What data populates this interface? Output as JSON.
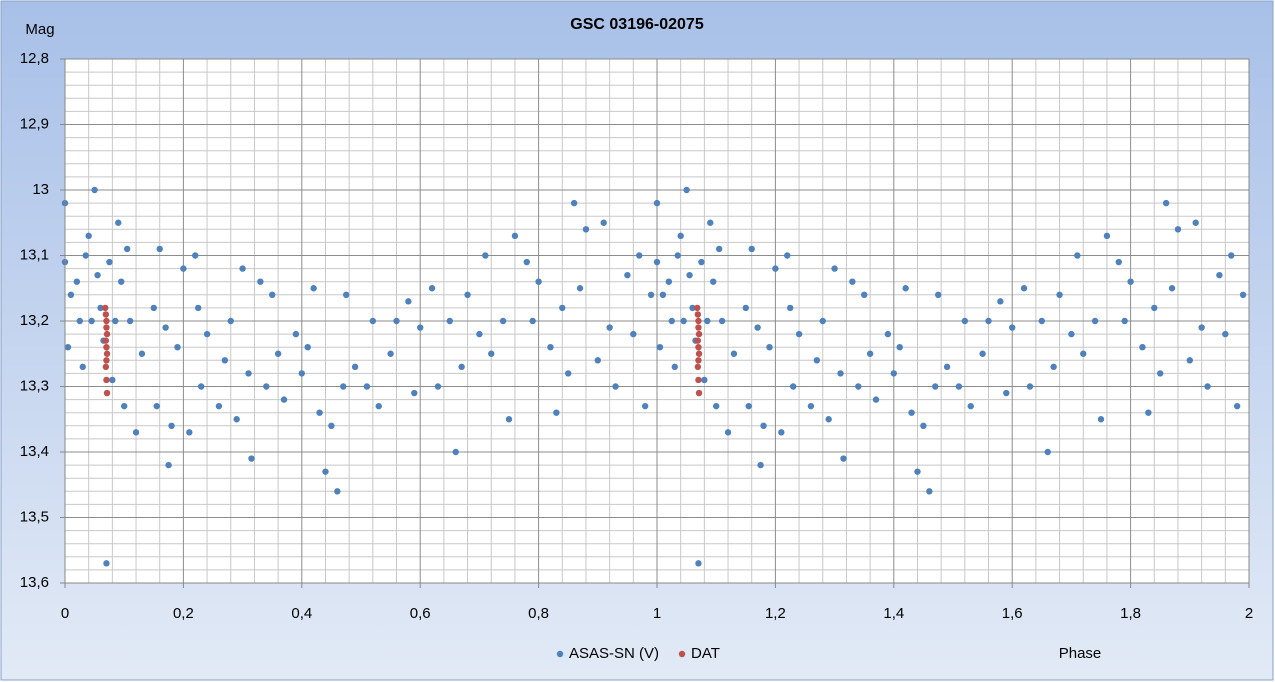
{
  "chart_data": {
    "type": "scatter",
    "title": "GSC 03196-02075",
    "y_label": "Mag",
    "x_label": "Phase",
    "xlim": [
      0,
      2
    ],
    "ylim": [
      13.6,
      12.8
    ],
    "xticks": [
      0,
      {
        "value": 0.2,
        "label": "0,2"
      },
      {
        "value": 0.4,
        "label": "0,4"
      },
      {
        "value": 0.6,
        "label": "0,6"
      },
      {
        "value": 0.8,
        "label": "0,8"
      },
      1,
      {
        "value": 1.2,
        "label": "1,2"
      },
      {
        "value": 1.4,
        "label": "1,4"
      },
      {
        "value": 1.6,
        "label": "1,6"
      },
      {
        "value": 1.8,
        "label": "1,8"
      },
      2
    ],
    "yticks": [
      {
        "value": 12.8,
        "label": "12,8"
      },
      {
        "value": 12.9,
        "label": "12,9"
      },
      13,
      {
        "value": 13.1,
        "label": "13,1"
      },
      {
        "value": 13.2,
        "label": "13,2"
      },
      {
        "value": 13.3,
        "label": "13,3"
      },
      {
        "value": 13.4,
        "label": "13,4"
      },
      {
        "value": 13.5,
        "label": "13,5"
      },
      {
        "value": 13.6,
        "label": "13,6"
      }
    ],
    "grid": true,
    "legend": "bottom",
    "series": [
      {
        "name": "ASAS-SN (V)",
        "color": "#4f81bd",
        "x": [
          0,
          0,
          0.005,
          0.01,
          0.02,
          0.025,
          0.03,
          0.035,
          0.04,
          0.045,
          0.05,
          0.055,
          0.06,
          0.065,
          0.07,
          0.075,
          0.08,
          0.085,
          0.09,
          0.095,
          0.1,
          0.105,
          0.11,
          0.12,
          0.13,
          0.15,
          0.155,
          0.16,
          0.17,
          0.175,
          0.18,
          0.19,
          0.2,
          0.21,
          0.22,
          0.225,
          0.23,
          0.24,
          0.26,
          0.27,
          0.28,
          0.29,
          0.3,
          0.31,
          0.315,
          0.33,
          0.34,
          0.35,
          0.36,
          0.37,
          0.39,
          0.4,
          0.41,
          0.42,
          0.43,
          0.44,
          0.45,
          0.46,
          0.47,
          0.475,
          0.49,
          0.51,
          0.52,
          0.53,
          0.55,
          0.56,
          0.58,
          0.59,
          0.6,
          0.62,
          0.63,
          0.65,
          0.66,
          0.67,
          0.68,
          0.7,
          0.71,
          0.72,
          0.74,
          0.75,
          0.76,
          0.78,
          0.79,
          0.8,
          0.82,
          0.83,
          0.84,
          0.85,
          0.86,
          0.87,
          0.88,
          0.9,
          0.91,
          0.92,
          0.93,
          0.95,
          0.96,
          0.97,
          0.98,
          0.99,
          1,
          1,
          1.005,
          1.01,
          1.02,
          1.025,
          1.03,
          1.035,
          1.04,
          1.045,
          1.05,
          1.055,
          1.06,
          1.065,
          1.07,
          1.075,
          1.08,
          1.085,
          1.09,
          1.095,
          1.1,
          1.105,
          1.11,
          1.12,
          1.13,
          1.15,
          1.155,
          1.16,
          1.17,
          1.175,
          1.18,
          1.19,
          1.2,
          1.21,
          1.22,
          1.225,
          1.23,
          1.24,
          1.26,
          1.27,
          1.28,
          1.29,
          1.3,
          1.31,
          1.315,
          1.33,
          1.34,
          1.35,
          1.36,
          1.37,
          1.39,
          1.4,
          1.41,
          1.42,
          1.43,
          1.44,
          1.45,
          1.46,
          1.47,
          1.475,
          1.49,
          1.51,
          1.52,
          1.53,
          1.55,
          1.56,
          1.58,
          1.59,
          1.6,
          1.62,
          1.63,
          1.65,
          1.66,
          1.67,
          1.68,
          1.7,
          1.71,
          1.72,
          1.74,
          1.75,
          1.76,
          1.78,
          1.79,
          1.8,
          1.82,
          1.83,
          1.84,
          1.85,
          1.86,
          1.87,
          1.88,
          1.9,
          1.91,
          1.92,
          1.93,
          1.95,
          1.96,
          1.97,
          1.98,
          1.99
        ],
        "values": [
          13.02,
          13.11,
          13.24,
          13.16,
          13.14,
          13.2,
          13.27,
          13.1,
          13.07,
          13.2,
          13.0,
          13.13,
          13.18,
          13.23,
          13.57,
          13.11,
          13.29,
          13.2,
          13.05,
          13.14,
          13.33,
          13.09,
          13.2,
          13.37,
          13.25,
          13.18,
          13.33,
          13.09,
          13.21,
          13.42,
          13.36,
          13.24,
          13.12,
          13.37,
          13.1,
          13.18,
          13.3,
          13.22,
          13.33,
          13.26,
          13.2,
          13.35,
          13.12,
          13.28,
          13.41,
          13.14,
          13.3,
          13.16,
          13.25,
          13.32,
          13.22,
          13.28,
          13.24,
          13.15,
          13.34,
          13.43,
          13.36,
          13.46,
          13.3,
          13.16,
          13.27,
          13.3,
          13.2,
          13.33,
          13.25,
          13.2,
          13.17,
          13.31,
          13.21,
          13.15,
          13.3,
          13.2,
          13.4,
          13.27,
          13.16,
          13.22,
          13.1,
          13.25,
          13.2,
          13.35,
          13.07,
          13.11,
          13.2,
          13.14,
          13.24,
          13.34,
          13.18,
          13.28,
          13.02,
          13.15,
          13.06,
          13.26,
          13.05,
          13.21,
          13.3,
          13.13,
          13.22,
          13.1,
          13.33,
          13.16,
          13.02,
          13.11,
          13.24,
          13.16,
          13.14,
          13.2,
          13.27,
          13.1,
          13.07,
          13.2,
          13.0,
          13.13,
          13.18,
          13.23,
          13.57,
          13.11,
          13.29,
          13.2,
          13.05,
          13.14,
          13.33,
          13.09,
          13.2,
          13.37,
          13.25,
          13.18,
          13.33,
          13.09,
          13.21,
          13.42,
          13.36,
          13.24,
          13.12,
          13.37,
          13.1,
          13.18,
          13.3,
          13.22,
          13.33,
          13.26,
          13.2,
          13.35,
          13.12,
          13.28,
          13.41,
          13.14,
          13.3,
          13.16,
          13.25,
          13.32,
          13.22,
          13.28,
          13.24,
          13.15,
          13.34,
          13.43,
          13.36,
          13.46,
          13.3,
          13.16,
          13.27,
          13.3,
          13.2,
          13.33,
          13.25,
          13.2,
          13.17,
          13.31,
          13.21,
          13.15,
          13.3,
          13.2,
          13.4,
          13.27,
          13.16,
          13.22,
          13.1,
          13.25,
          13.2,
          13.35,
          13.07,
          13.11,
          13.2,
          13.14,
          13.24,
          13.34,
          13.18,
          13.28,
          13.02,
          13.15,
          13.06,
          13.26,
          13.05,
          13.21,
          13.3,
          13.13,
          13.22,
          13.1,
          13.33,
          13.16
        ]
      },
      {
        "name": "DAT",
        "color": "#c0504d",
        "x": [
          0.068,
          0.069,
          0.07,
          0.07,
          0.071,
          0.069,
          0.07,
          0.071,
          0.07,
          0.069,
          0.07,
          0.071,
          1.068,
          1.069,
          1.07,
          1.07,
          1.071,
          1.069,
          1.07,
          1.071,
          1.07,
          1.069,
          1.07,
          1.071
        ],
        "values": [
          13.18,
          13.19,
          13.2,
          13.21,
          13.22,
          13.23,
          13.24,
          13.25,
          13.26,
          13.27,
          13.29,
          13.31,
          13.18,
          13.19,
          13.2,
          13.21,
          13.22,
          13.23,
          13.24,
          13.25,
          13.26,
          13.27,
          13.29,
          13.31
        ]
      }
    ]
  }
}
